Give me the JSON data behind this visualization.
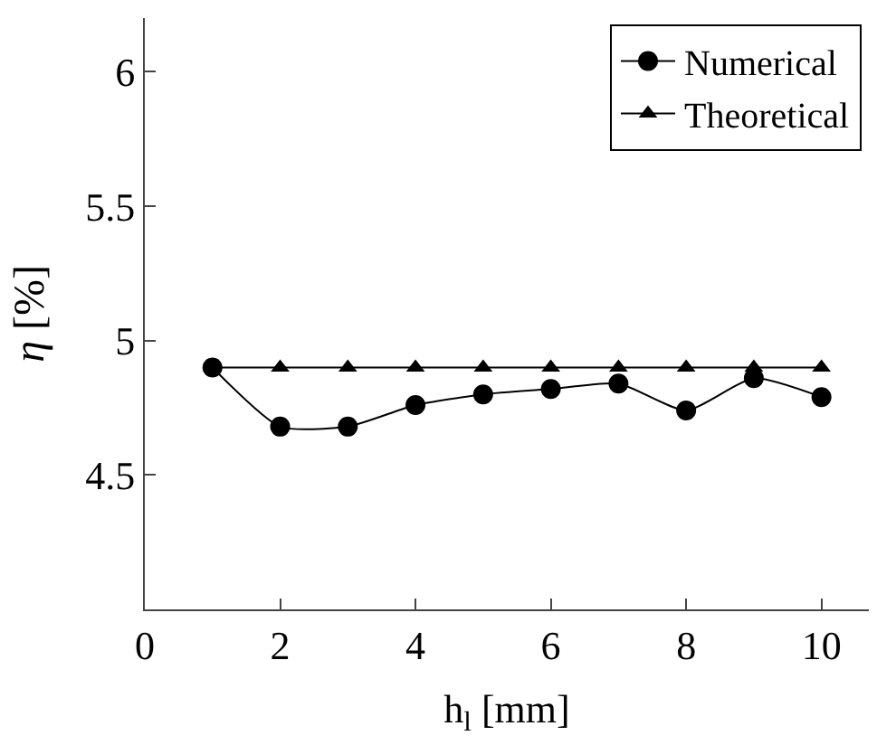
{
  "chart_data": {
    "type": "line",
    "xlabel": "h$_{l}$ [mm]",
    "ylabel": "η [%]",
    "x": [
      1,
      2,
      3,
      4,
      5,
      6,
      7,
      8,
      9,
      10
    ],
    "series": [
      {
        "name": "Numerical",
        "color": "#000000",
        "marker": "circle",
        "values": [
          4.9,
          4.68,
          4.68,
          4.76,
          4.8,
          4.82,
          4.84,
          4.74,
          4.86,
          4.79
        ]
      },
      {
        "name": "Theoretical",
        "color": "#000000",
        "marker": "triangle",
        "values": [
          4.9,
          4.9,
          4.9,
          4.9,
          4.9,
          4.9,
          4.9,
          4.9,
          4.9,
          4.9
        ]
      }
    ],
    "xlim": [
      0,
      10.7
    ],
    "ylim": [
      4.0,
      6.2
    ],
    "xticks": [
      0,
      2,
      4,
      6,
      8,
      10
    ],
    "yticks": [
      4.5,
      5,
      5.5,
      6
    ],
    "legend": "top right"
  }
}
